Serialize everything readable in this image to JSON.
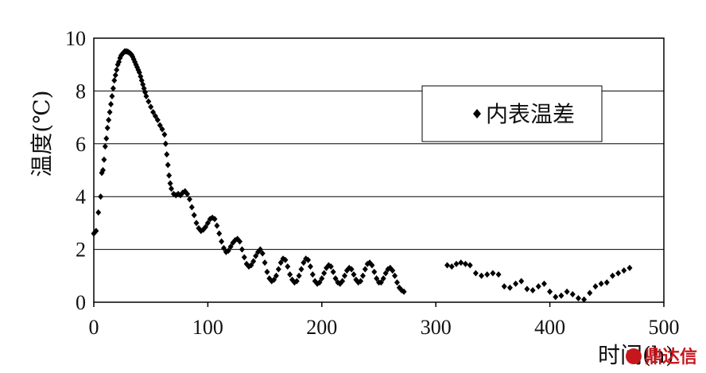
{
  "chart_data": {
    "type": "scatter",
    "xlabel": "时间(h)",
    "ylabel": "温度(℃)",
    "xlim": [
      0,
      500
    ],
    "ylim": [
      0,
      10
    ],
    "x_ticks": [
      "0",
      "100",
      "200",
      "300",
      "400",
      "500"
    ],
    "y_ticks": [
      "0",
      "2",
      "4",
      "6",
      "8",
      "10"
    ],
    "grid": "horizontal",
    "legend_position": "right",
    "series": [
      {
        "name": "内表温差",
        "marker": "diamond",
        "color": "#000000",
        "points": [
          [
            0,
            2.6
          ],
          [
            2,
            2.7
          ],
          [
            4,
            3.4
          ],
          [
            6,
            4.0
          ],
          [
            7,
            4.9
          ],
          [
            8,
            5.0
          ],
          [
            9,
            5.4
          ],
          [
            10,
            5.9
          ],
          [
            11,
            6.2
          ],
          [
            12,
            6.6
          ],
          [
            13,
            6.9
          ],
          [
            14,
            7.2
          ],
          [
            15,
            7.5
          ],
          [
            16,
            7.8
          ],
          [
            17,
            8.1
          ],
          [
            18,
            8.4
          ],
          [
            19,
            8.6
          ],
          [
            20,
            8.8
          ],
          [
            21,
            9.0
          ],
          [
            22,
            9.1
          ],
          [
            23,
            9.25
          ],
          [
            24,
            9.35
          ],
          [
            25,
            9.4
          ],
          [
            26,
            9.45
          ],
          [
            27,
            9.5
          ],
          [
            28,
            9.5
          ],
          [
            29,
            9.5
          ],
          [
            30,
            9.48
          ],
          [
            31,
            9.45
          ],
          [
            32,
            9.42
          ],
          [
            33,
            9.38
          ],
          [
            34,
            9.3
          ],
          [
            35,
            9.2
          ],
          [
            36,
            9.1
          ],
          [
            37,
            9.0
          ],
          [
            38,
            8.9
          ],
          [
            39,
            8.8
          ],
          [
            40,
            8.7
          ],
          [
            41,
            8.55
          ],
          [
            42,
            8.4
          ],
          [
            43,
            8.25
          ],
          [
            44,
            8.1
          ],
          [
            45,
            7.95
          ],
          [
            46,
            7.8
          ],
          [
            48,
            7.6
          ],
          [
            50,
            7.4
          ],
          [
            52,
            7.2
          ],
          [
            54,
            7.05
          ],
          [
            56,
            6.9
          ],
          [
            58,
            6.7
          ],
          [
            60,
            6.55
          ],
          [
            62,
            6.35
          ],
          [
            63,
            6.0
          ],
          [
            64,
            5.6
          ],
          [
            65,
            5.2
          ],
          [
            66,
            4.8
          ],
          [
            67,
            4.5
          ],
          [
            68,
            4.3
          ],
          [
            70,
            4.1
          ],
          [
            72,
            4.05
          ],
          [
            74,
            4.1
          ],
          [
            76,
            4.05
          ],
          [
            78,
            4.15
          ],
          [
            80,
            4.2
          ],
          [
            82,
            4.1
          ],
          [
            84,
            3.9
          ],
          [
            86,
            3.6
          ],
          [
            88,
            3.3
          ],
          [
            90,
            3.0
          ],
          [
            92,
            2.8
          ],
          [
            94,
            2.7
          ],
          [
            96,
            2.75
          ],
          [
            98,
            2.85
          ],
          [
            100,
            3.0
          ],
          [
            102,
            3.15
          ],
          [
            104,
            3.2
          ],
          [
            106,
            3.15
          ],
          [
            108,
            2.9
          ],
          [
            110,
            2.6
          ],
          [
            112,
            2.3
          ],
          [
            114,
            2.05
          ],
          [
            116,
            1.9
          ],
          [
            118,
            1.95
          ],
          [
            120,
            2.1
          ],
          [
            122,
            2.25
          ],
          [
            124,
            2.35
          ],
          [
            126,
            2.4
          ],
          [
            128,
            2.3
          ],
          [
            130,
            2.0
          ],
          [
            132,
            1.7
          ],
          [
            134,
            1.45
          ],
          [
            136,
            1.35
          ],
          [
            138,
            1.4
          ],
          [
            140,
            1.55
          ],
          [
            142,
            1.75
          ],
          [
            144,
            1.9
          ],
          [
            146,
            2.0
          ],
          [
            148,
            1.85
          ],
          [
            150,
            1.5
          ],
          [
            152,
            1.15
          ],
          [
            154,
            0.9
          ],
          [
            156,
            0.8
          ],
          [
            158,
            0.85
          ],
          [
            160,
            1.0
          ],
          [
            162,
            1.25
          ],
          [
            164,
            1.5
          ],
          [
            166,
            1.65
          ],
          [
            168,
            1.6
          ],
          [
            170,
            1.35
          ],
          [
            172,
            1.05
          ],
          [
            174,
            0.85
          ],
          [
            176,
            0.75
          ],
          [
            178,
            0.8
          ],
          [
            180,
            1.0
          ],
          [
            182,
            1.25
          ],
          [
            184,
            1.5
          ],
          [
            186,
            1.65
          ],
          [
            188,
            1.6
          ],
          [
            190,
            1.35
          ],
          [
            192,
            1.05
          ],
          [
            194,
            0.8
          ],
          [
            196,
            0.7
          ],
          [
            198,
            0.75
          ],
          [
            200,
            0.9
          ],
          [
            202,
            1.1
          ],
          [
            204,
            1.3
          ],
          [
            206,
            1.4
          ],
          [
            208,
            1.35
          ],
          [
            210,
            1.15
          ],
          [
            212,
            0.9
          ],
          [
            214,
            0.75
          ],
          [
            216,
            0.7
          ],
          [
            218,
            0.8
          ],
          [
            220,
            1.0
          ],
          [
            222,
            1.2
          ],
          [
            224,
            1.3
          ],
          [
            226,
            1.25
          ],
          [
            228,
            1.05
          ],
          [
            230,
            0.85
          ],
          [
            232,
            0.75
          ],
          [
            234,
            0.8
          ],
          [
            236,
            1.0
          ],
          [
            238,
            1.25
          ],
          [
            240,
            1.45
          ],
          [
            242,
            1.5
          ],
          [
            244,
            1.4
          ],
          [
            246,
            1.15
          ],
          [
            248,
            0.9
          ],
          [
            250,
            0.75
          ],
          [
            252,
            0.75
          ],
          [
            254,
            0.9
          ],
          [
            256,
            1.1
          ],
          [
            258,
            1.25
          ],
          [
            260,
            1.3
          ],
          [
            262,
            1.2
          ],
          [
            264,
            1.0
          ],
          [
            266,
            0.75
          ],
          [
            268,
            0.55
          ],
          [
            270,
            0.45
          ],
          [
            272,
            0.4
          ],
          [
            310,
            1.4
          ],
          [
            314,
            1.35
          ],
          [
            318,
            1.45
          ],
          [
            322,
            1.5
          ],
          [
            326,
            1.45
          ],
          [
            330,
            1.4
          ],
          [
            335,
            1.1
          ],
          [
            340,
            1.0
          ],
          [
            345,
            1.05
          ],
          [
            350,
            1.1
          ],
          [
            355,
            1.05
          ],
          [
            360,
            0.6
          ],
          [
            365,
            0.55
          ],
          [
            370,
            0.7
          ],
          [
            375,
            0.8
          ],
          [
            380,
            0.5
          ],
          [
            385,
            0.45
          ],
          [
            390,
            0.6
          ],
          [
            395,
            0.7
          ],
          [
            400,
            0.4
          ],
          [
            405,
            0.2
          ],
          [
            410,
            0.25
          ],
          [
            415,
            0.4
          ],
          [
            420,
            0.3
          ],
          [
            425,
            0.15
          ],
          [
            430,
            0.1
          ],
          [
            435,
            0.35
          ],
          [
            440,
            0.6
          ],
          [
            445,
            0.7
          ],
          [
            450,
            0.75
          ],
          [
            455,
            1.0
          ],
          [
            460,
            1.1
          ],
          [
            465,
            1.2
          ],
          [
            470,
            1.3
          ]
        ]
      }
    ]
  },
  "watermark": {
    "text": "鼎达信",
    "color": "#c8161d"
  }
}
